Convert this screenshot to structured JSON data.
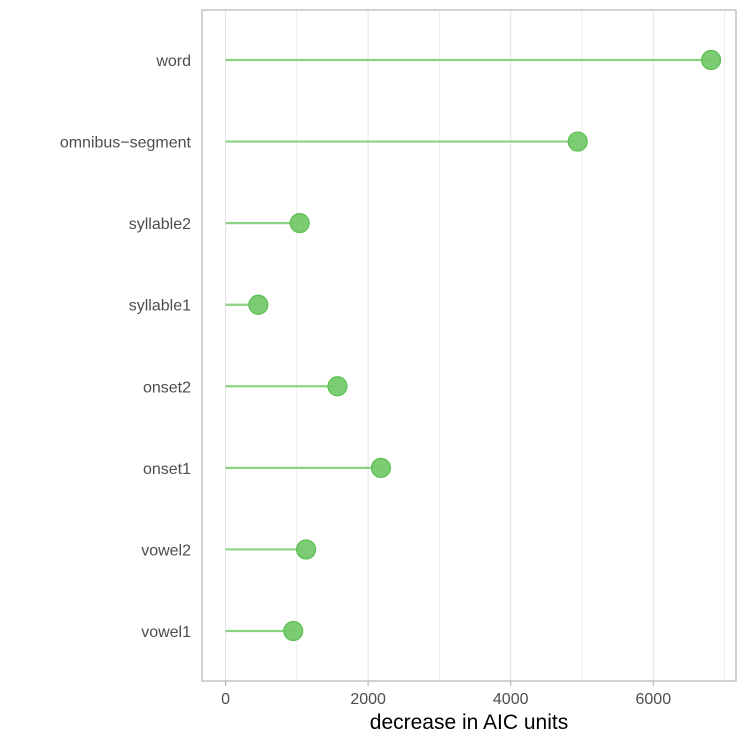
{
  "chart_data": {
    "type": "lollipop",
    "categories": [
      "vowel1",
      "vowel2",
      "onset1",
      "onset2",
      "syllable1",
      "syllable2",
      "omnibus−segment",
      "word"
    ],
    "values": [
      950,
      1130,
      2180,
      1570,
      460,
      1040,
      4940,
      6810
    ],
    "xlabel": "decrease in AIC units",
    "ylabel": "",
    "xticks": [
      0,
      2000,
      4000,
      6000
    ],
    "xlim": [
      -330,
      7160
    ],
    "grid": "vertical",
    "colors": {
      "point_fill": "#74c96a",
      "point_stroke": "#5cbf52",
      "segment": "#8bd383",
      "grid": "#e5e5e5",
      "panel_border": "#b3b3b3"
    }
  }
}
